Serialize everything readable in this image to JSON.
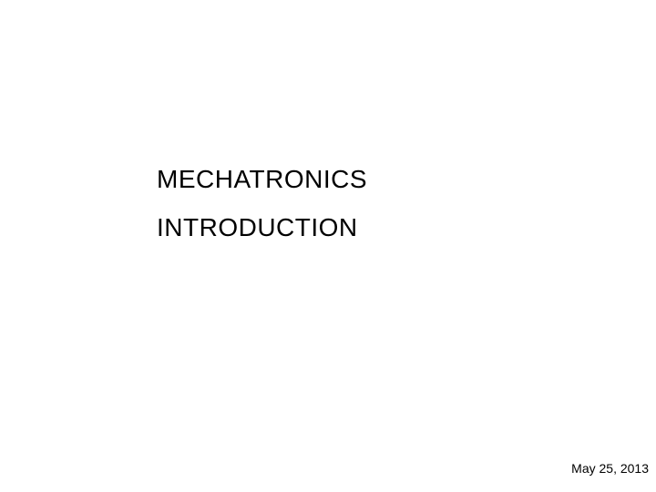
{
  "slide": {
    "title_line1": "MECHATRONICS",
    "title_line2": "INTRODUCTION",
    "date": "May 25, 2013",
    "background_color": "#ffffff",
    "text_color": "#000000",
    "title_fontsize": 28,
    "date_fontsize": 14
  }
}
